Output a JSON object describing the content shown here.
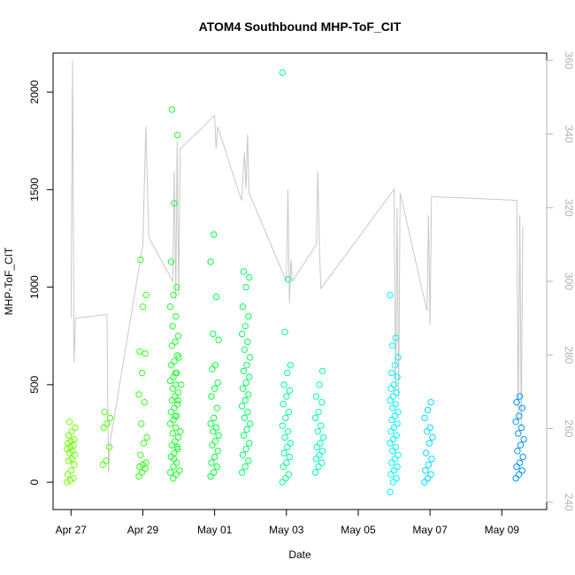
{
  "chart_data": {
    "type": "scatter",
    "title": "ATOM4 Southbound MHP-ToF_CIT",
    "xlabel": "Date",
    "ylabel": "MHP-ToF_CIT",
    "x_range": [
      "2018-04-26T12:00",
      "2018-05-10T06:00"
    ],
    "ylim": [
      -140,
      2200
    ],
    "y_ticks": [
      0,
      500,
      1000,
      1500,
      2000
    ],
    "x_ticks": [
      {
        "date": "2018-04-27",
        "label": "Apr 27"
      },
      {
        "date": "2018-04-29",
        "label": "Apr 29"
      },
      {
        "date": "2018-05-01",
        "label": "May 01"
      },
      {
        "date": "2018-05-03",
        "label": "May 03"
      },
      {
        "date": "2018-05-05",
        "label": "May 05"
      },
      {
        "date": "2018-05-07",
        "label": "May 07"
      },
      {
        "date": "2018-05-09",
        "label": "May 09"
      }
    ],
    "y2lim": [
      238,
      362
    ],
    "y2_ticks": [
      240,
      260,
      280,
      300,
      320,
      340,
      360
    ],
    "grid": false,
    "point_color_scale": [
      "#7fff00",
      "#00ff40",
      "#00ffff",
      "#0080ff"
    ],
    "line_color": "#c8c8c8",
    "series": [
      {
        "points": [
          {
            "x": "2018-04-27T00:00",
            "y": [
              0,
              10,
              20,
              40,
              60,
              90,
              110,
              120,
              140,
              150,
              160,
              170,
              180,
              190,
              200,
              210,
              220,
              240,
              260,
              280,
              310
            ]
          },
          {
            "x": "2018-04-28T00:00",
            "y": [
              90,
              110,
              180,
              280,
              300,
              330,
              360
            ]
          },
          {
            "x": "2018-04-29T00:00",
            "y": [
              30,
              50,
              70,
              80,
              90,
              100,
              140,
              200,
              230,
              300,
              410,
              450,
              560,
              660,
              670,
              900,
              960,
              1140
            ]
          },
          {
            "x": "2018-04-29T21:00",
            "y": [
              50,
              80,
              100,
              130,
              150,
              170,
              190,
              210,
              230,
              250,
              280,
              300,
              320,
              340,
              360,
              380,
              400,
              420,
              440,
              460,
              480,
              500,
              520,
              540,
              560,
              600,
              620,
              650,
              700,
              720,
              750,
              800,
              850,
              900,
              960,
              1000,
              1130,
              1430,
              1780,
              1910
            ]
          },
          {
            "x": "2018-04-29T23:00",
            "y": [
              20,
              40,
              60,
              120,
              180,
              260,
              340,
              420,
              500,
              560,
              640
            ]
          },
          {
            "x": "2018-05-01T00:00",
            "y": [
              30,
              50,
              80,
              100,
              130,
              160,
              190,
              210,
              240,
              260,
              280,
              300,
              330,
              380,
              440,
              480,
              510,
              580,
              600,
              730,
              760,
              950,
              1130,
              1270
            ]
          },
          {
            "x": "2018-05-01T21:00",
            "y": [
              50,
              80,
              110,
              140,
              170,
              200,
              240,
              270,
              300,
              330,
              360,
              390,
              420,
              450,
              480,
              510,
              540,
              570,
              600,
              640,
              680,
              720,
              760,
              800,
              850,
              900,
              1000,
              1050,
              1080
            ]
          },
          {
            "x": "2018-05-03T00:00",
            "y": [
              0,
              20,
              40,
              80,
              100,
              130,
              150,
              180,
              200,
              230,
              260,
              290,
              330,
              360,
              400,
              440,
              470,
              500,
              560,
              600,
              770,
              1040,
              2100
            ]
          },
          {
            "x": "2018-05-03T22:00",
            "y": [
              50,
              80,
              100,
              120,
              140,
              160,
              180,
              200,
              230,
              260,
              290,
              330,
              360,
              410,
              440,
              500,
              570
            ]
          },
          {
            "x": "2018-05-06T00:00",
            "y": [
              -50,
              0,
              20,
              40,
              60,
              80,
              100,
              120,
              140,
              160,
              180,
              200,
              220,
              240,
              260,
              280,
              300,
              320,
              340,
              360,
              380,
              400,
              420,
              440,
              460,
              480,
              500,
              540,
              560,
              600,
              640,
              700,
              740,
              960
            ]
          },
          {
            "x": "2018-05-06T23:00",
            "y": [
              0,
              20,
              40,
              60,
              90,
              120,
              150,
              200,
              230,
              260,
              280,
              330,
              370,
              410
            ]
          },
          {
            "x": "2018-05-09T12:00",
            "y": [
              20,
              40,
              60,
              80,
              100,
              130,
              160,
              190,
              220,
              250,
              280,
              310,
              340,
              380,
              410,
              440
            ]
          }
        ]
      },
      {
        "name": "",
        "axis": "right",
        "line": [
          [
            "2018-04-27T00:00",
            290
          ],
          [
            "2018-04-27T01:00",
            360
          ],
          [
            "2018-04-27T02:00",
            278
          ],
          [
            "2018-04-27T03:00",
            290
          ],
          [
            "2018-04-28T00:00",
            291
          ],
          [
            "2018-04-28T01:00",
            248
          ],
          [
            "2018-04-28T02:00",
            256
          ],
          [
            "2018-04-29T00:00",
            310
          ],
          [
            "2018-04-29T02:00",
            342
          ],
          [
            "2018-04-29T04:00",
            312
          ],
          [
            "2018-04-29T20:00",
            300
          ],
          [
            "2018-04-29T21:00",
            330
          ],
          [
            "2018-04-29T22:00",
            295
          ],
          [
            "2018-04-29T23:00",
            338
          ],
          [
            "2018-04-30T00:00",
            296
          ],
          [
            "2018-04-30T01:00",
            336
          ],
          [
            "2018-05-01T00:00",
            345
          ],
          [
            "2018-05-01T01:00",
            336
          ],
          [
            "2018-05-01T02:00",
            342
          ],
          [
            "2018-05-01T18:00",
            322
          ],
          [
            "2018-05-01T20:00",
            335
          ],
          [
            "2018-05-01T21:00",
            325
          ],
          [
            "2018-05-01T22:00",
            340
          ],
          [
            "2018-05-01T23:00",
            324
          ],
          [
            "2018-05-03T00:00",
            300
          ],
          [
            "2018-05-03T01:00",
            325
          ],
          [
            "2018-05-03T02:00",
            294
          ],
          [
            "2018-05-03T03:00",
            306
          ],
          [
            "2018-05-03T04:00",
            300
          ],
          [
            "2018-05-03T20:00",
            310
          ],
          [
            "2018-05-03T21:00",
            330
          ],
          [
            "2018-05-03T22:00",
            310
          ],
          [
            "2018-05-03T23:00",
            298
          ],
          [
            "2018-05-06T00:00",
            325
          ],
          [
            "2018-05-06T01:00",
            270
          ],
          [
            "2018-05-06T02:00",
            320
          ],
          [
            "2018-05-06T03:00",
            268
          ],
          [
            "2018-05-06T04:00",
            324
          ],
          [
            "2018-05-06T22:00",
            292
          ],
          [
            "2018-05-06T23:00",
            318
          ],
          [
            "2018-05-07T00:00",
            288
          ],
          [
            "2018-05-07T01:00",
            323
          ],
          [
            "2018-05-09T10:00",
            322
          ],
          [
            "2018-05-09T11:00",
            262
          ],
          [
            "2018-05-09T12:00",
            318
          ],
          [
            "2018-05-09T13:00",
            260
          ],
          [
            "2018-05-09T14:00",
            315
          ]
        ]
      }
    ]
  }
}
